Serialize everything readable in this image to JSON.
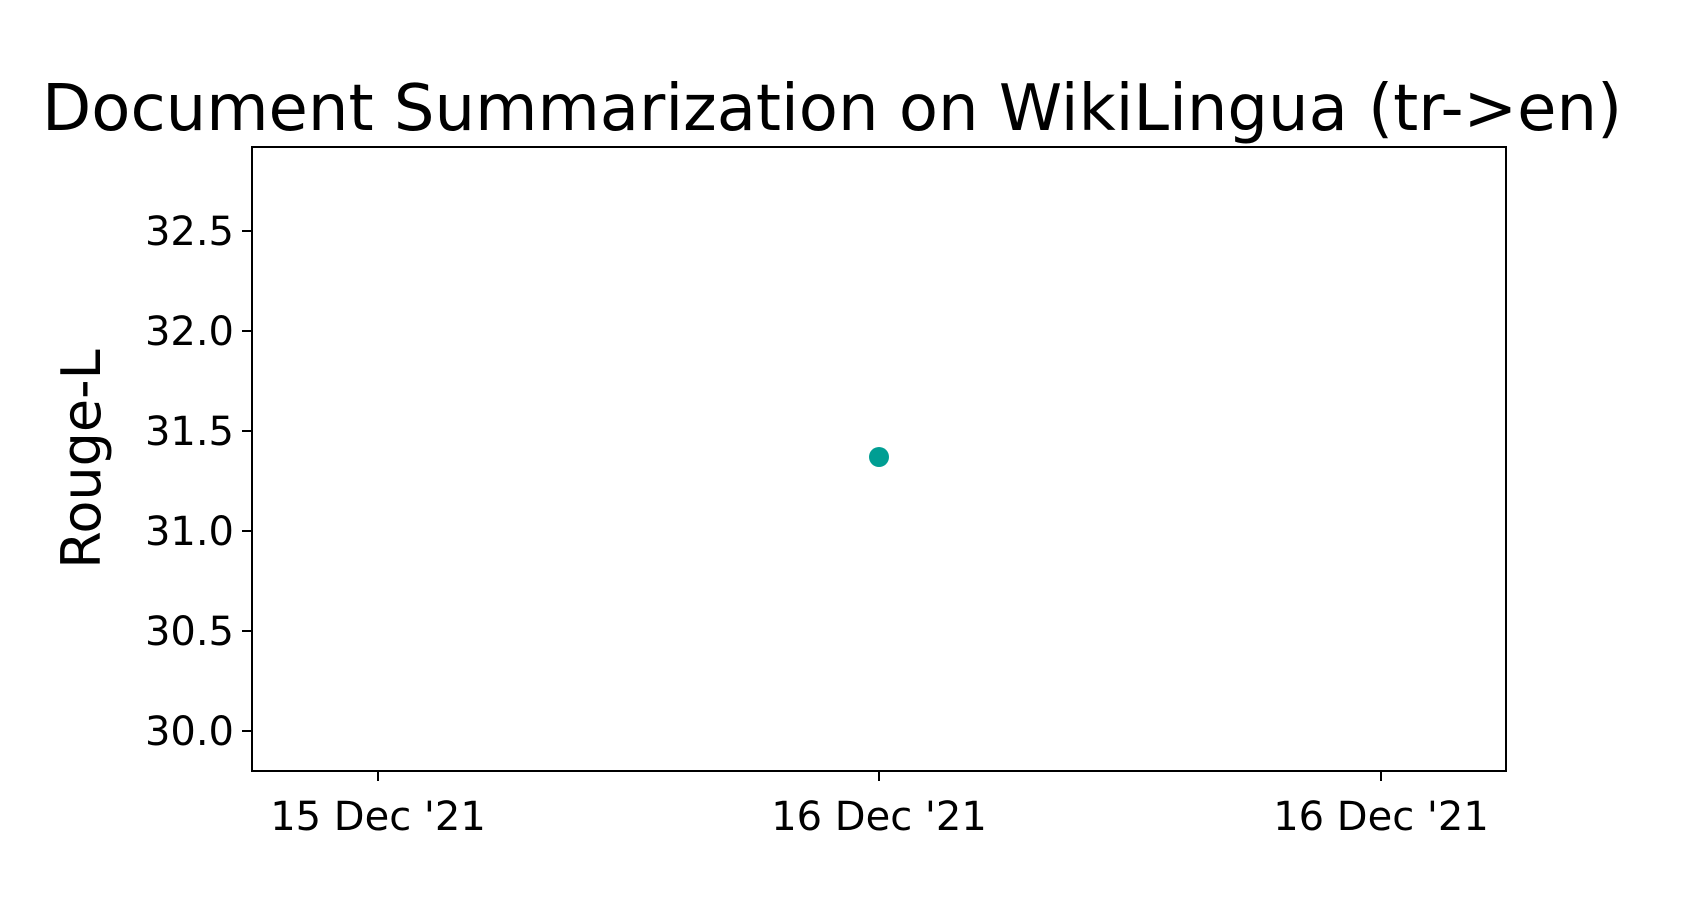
{
  "chart_data": {
    "type": "scatter",
    "title": "Document Summarization on WikiLingua (tr->en)",
    "xlabel": "",
    "ylabel": "Rouge-L",
    "x_ticks": [
      "15 Dec '21",
      "16 Dec '21",
      "16 Dec '21"
    ],
    "y_ticks": [
      "30.0",
      "30.5",
      "31.0",
      "31.5",
      "32.0",
      "32.5"
    ],
    "ylim": [
      29.8,
      32.92
    ],
    "grid": false,
    "series": [
      {
        "x": [
          "16 Dec '21"
        ],
        "values": [
          31.37
        ],
        "color": "#009e93"
      }
    ]
  }
}
